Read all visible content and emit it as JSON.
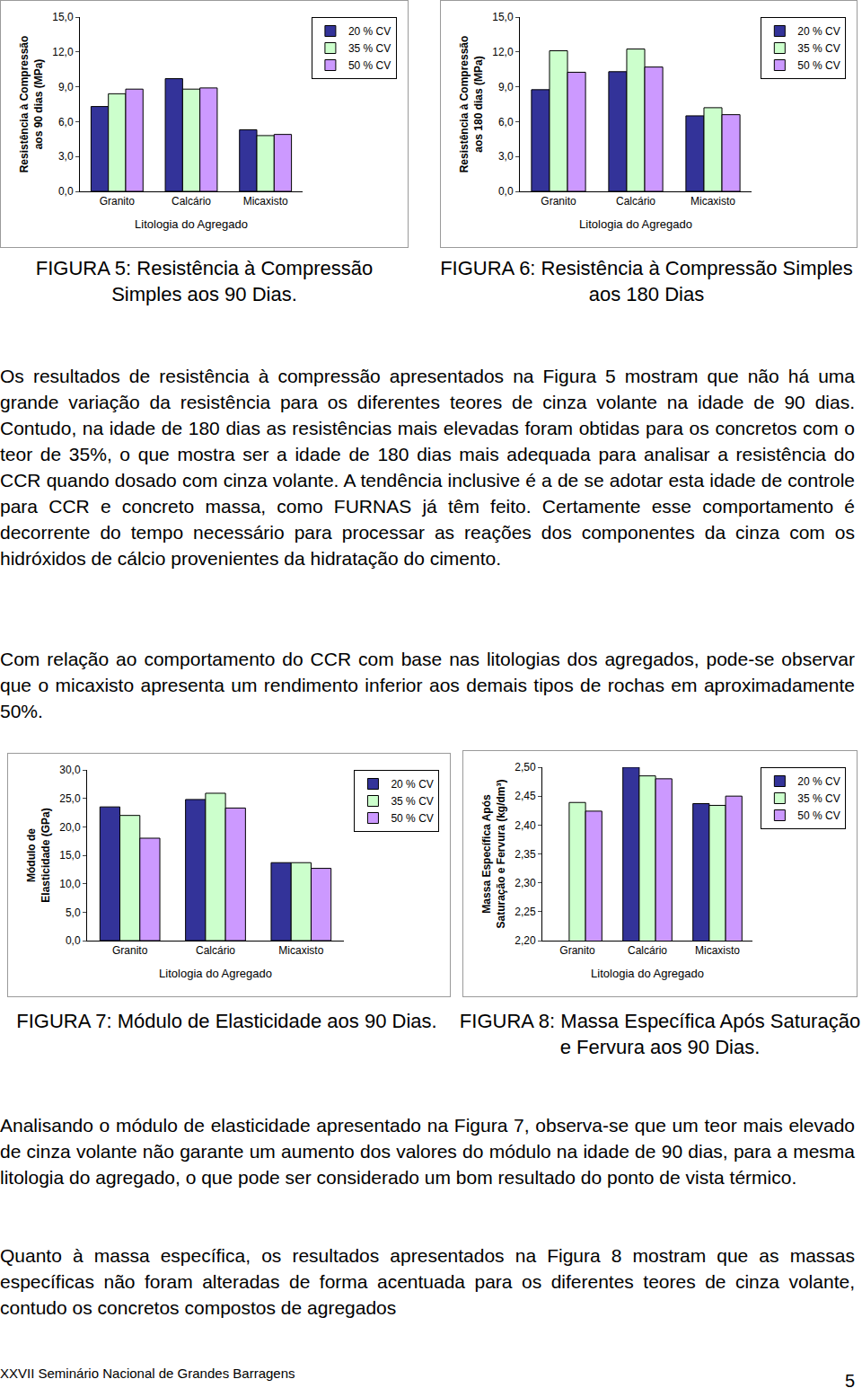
{
  "chart_data": [
    {
      "type": "bar",
      "title": "FIGURA 5: Resistência à Compressão Simples aos 90 Dias.",
      "x_label": "Litologia do Agregado",
      "y_label": "Resistência à Compressão aos 90 dias (MPa)",
      "categories": [
        "Granito",
        "Calcário",
        "Micaxisto"
      ],
      "series": [
        {
          "name": "20 % CV",
          "color": "#333399",
          "values": [
            7.3,
            9.7,
            5.3
          ]
        },
        {
          "name": "35 % CV",
          "color": "#ccffcc",
          "values": [
            8.4,
            8.8,
            4.8
          ]
        },
        {
          "name": "50 % CV",
          "color": "#cc99ff",
          "values": [
            8.8,
            8.9,
            4.9
          ]
        }
      ],
      "ylim": [
        0,
        15
      ],
      "yticks": [
        {
          "value": 0,
          "label": "0,0"
        },
        {
          "value": 3,
          "label": "3,0"
        },
        {
          "value": 6,
          "label": "6,0"
        },
        {
          "value": 9,
          "label": "9,0"
        },
        {
          "value": 12,
          "label": "12,0"
        },
        {
          "value": 15,
          "label": "15,0"
        }
      ],
      "grid": false,
      "legend": "right"
    },
    {
      "type": "bar",
      "title": "FIGURA 6: Resistência à Compressão Simples aos 180 Dias",
      "x_label": "Litologia do Agregado",
      "y_label": "Resistência à Compressão aos 180 dias (MPa)",
      "categories": [
        "Granito",
        "Calcário",
        "Micaxisto"
      ],
      "series": [
        {
          "name": "20 % CV",
          "color": "#333399",
          "values": [
            8.75,
            10.3,
            6.5
          ]
        },
        {
          "name": "35 % CV",
          "color": "#ccffcc",
          "values": [
            12.1,
            12.25,
            7.2
          ]
        },
        {
          "name": "50 % CV",
          "color": "#cc99ff",
          "values": [
            10.25,
            10.7,
            6.6
          ]
        }
      ],
      "ylim": [
        0,
        15
      ],
      "yticks": [
        {
          "value": 0,
          "label": "0,0"
        },
        {
          "value": 3,
          "label": "3,0"
        },
        {
          "value": 6,
          "label": "6,0"
        },
        {
          "value": 9,
          "label": "9,0"
        },
        {
          "value": 12,
          "label": "12,0"
        },
        {
          "value": 15,
          "label": "15,0"
        }
      ],
      "grid": false,
      "legend": "right"
    },
    {
      "type": "bar",
      "title": "FIGURA 7: Módulo de Elasticidade aos 90 Dias.",
      "x_label": "Litologia do Agregado",
      "y_label": "Módulo de Elasticidade (GPa)",
      "categories": [
        "Granito",
        "Calcário",
        "Micaxisto"
      ],
      "series": [
        {
          "name": "20 % CV",
          "color": "#333399",
          "values": [
            23.5,
            24.8,
            13.7
          ]
        },
        {
          "name": "35 % CV",
          "color": "#ccffcc",
          "values": [
            22.0,
            25.9,
            13.7
          ]
        },
        {
          "name": "50 % CV",
          "color": "#cc99ff",
          "values": [
            18.0,
            23.3,
            12.7
          ]
        }
      ],
      "ylim": [
        0,
        30
      ],
      "yticks": [
        {
          "value": 0,
          "label": "0,0"
        },
        {
          "value": 5,
          "label": "5,0"
        },
        {
          "value": 10,
          "label": "10,0"
        },
        {
          "value": 15,
          "label": "15,0"
        },
        {
          "value": 20,
          "label": "20,0"
        },
        {
          "value": 25,
          "label": "25,0"
        },
        {
          "value": 30,
          "label": "30,0"
        }
      ],
      "grid": false,
      "legend": "right"
    },
    {
      "type": "bar",
      "title": "FIGURA 8: Massa Específica Após Saturação e Fervura aos 90 Dias.",
      "x_label": "Litologia do Agregado",
      "y_label": "Massa Específica Após Saturação e Fervura (kg/dm³)",
      "categories": [
        "Granito",
        "Calcário",
        "Micaxisto"
      ],
      "series": [
        {
          "name": "20 % CV",
          "color": "#333399",
          "values": [
            null,
            2.5,
            2.437
          ]
        },
        {
          "name": "35 % CV",
          "color": "#ccffcc",
          "values": [
            2.439,
            2.485,
            2.434
          ]
        },
        {
          "name": "50 % CV",
          "color": "#cc99ff",
          "values": [
            2.424,
            2.48,
            2.45
          ]
        }
      ],
      "ylim": [
        2.2,
        2.5
      ],
      "yticks": [
        {
          "value": 2.2,
          "label": "2,20"
        },
        {
          "value": 2.25,
          "label": "2,25"
        },
        {
          "value": 2.3,
          "label": "2,30"
        },
        {
          "value": 2.35,
          "label": "2,35"
        },
        {
          "value": 2.4,
          "label": "2,40"
        },
        {
          "value": 2.45,
          "label": "2,45"
        },
        {
          "value": 2.5,
          "label": "2,50"
        }
      ],
      "grid": false,
      "legend": "right"
    }
  ],
  "document": {
    "paragraphs": [
      "Os resultados de resistência à compressão apresentados na Figura 5 mostram que não há uma grande variação da resistência para os diferentes teores de cinza volante na idade de 90 dias. Contudo, na idade de 180 dias as resistências mais elevadas foram obtidas para os concretos com o teor de 35%, o que mostra ser a idade de 180 dias mais adequada para analisar a resistência do CCR quando dosado com cinza volante. A tendência inclusive é a de se adotar esta idade de controle para CCR e concreto massa, como FURNAS já têm feito. Certamente esse comportamento é decorrente do tempo necessário para processar as reações dos componentes da cinza com os hidróxidos de cálcio provenientes da hidratação do cimento.",
      "Com relação ao comportamento do CCR com base nas litologias dos agregados, pode-se observar que o micaxisto apresenta um rendimento inferior aos demais tipos de rochas em aproximadamente 50%.",
      "Analisando o módulo de elasticidade apresentado na Figura 7, observa-se que um teor mais elevado de cinza volante não garante um aumento dos valores do módulo na idade de 90 dias, para a mesma litologia do agregado, o que pode ser considerado um bom resultado do ponto de vista térmico.",
      "Quanto à massa específica, os resultados apresentados na Figura 8 mostram que as massas específicas não foram alteradas de forma acentuada para os diferentes teores de cinza volante, contudo os concretos compostos de agregados"
    ],
    "footer": "XXVII Seminário Nacional de Grandes Barragens",
    "page": "5"
  }
}
